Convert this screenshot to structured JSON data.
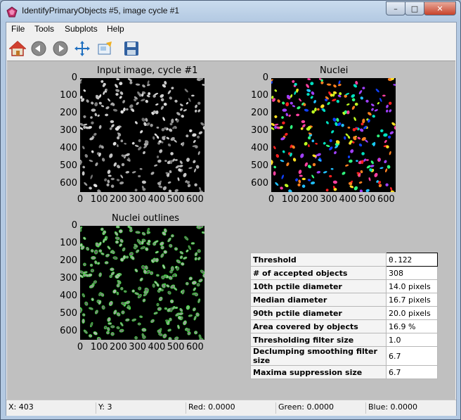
{
  "window": {
    "title": "IdentifyPrimaryObjects #5, image cycle #1"
  },
  "menu": {
    "items": [
      "File",
      "Tools",
      "Subplots",
      "Help"
    ]
  },
  "toolbar": {
    "buttons": [
      "home-icon",
      "back-icon",
      "forward-icon",
      "pan-icon",
      "zoom-icon",
      "save-icon"
    ]
  },
  "plots": {
    "input": {
      "title": "Input image, cycle #1"
    },
    "nuclei": {
      "title": "Nuclei"
    },
    "outlines": {
      "title": "Nuclei outlines"
    },
    "y_ticks": [
      "0",
      "100",
      "200",
      "300",
      "400",
      "500",
      "600"
    ],
    "x_ticks": [
      "0",
      "100",
      "200",
      "300",
      "400",
      "500",
      "600"
    ]
  },
  "params": {
    "rows": [
      {
        "label": "Threshold",
        "value": "0.122"
      },
      {
        "label": "# of accepted objects",
        "value": "308"
      },
      {
        "label": "10th pctile diameter",
        "value": "14.0 pixels"
      },
      {
        "label": "Median diameter",
        "value": "16.7 pixels"
      },
      {
        "label": "90th pctile diameter",
        "value": "20.0 pixels"
      },
      {
        "label": "Area covered by objects",
        "value": "16.9 %"
      },
      {
        "label": "Thresholding filter size",
        "value": "1.0"
      },
      {
        "label": "Declumping smoothing filter size",
        "value": "6.7"
      },
      {
        "label": "Maxima suppression size",
        "value": "6.7"
      }
    ]
  },
  "status": {
    "x": "X: 403",
    "y": "Y: 3",
    "red": "Red: 0.0000",
    "green": "Green: 0.0000",
    "blue": "Blue: 0.0000"
  }
}
